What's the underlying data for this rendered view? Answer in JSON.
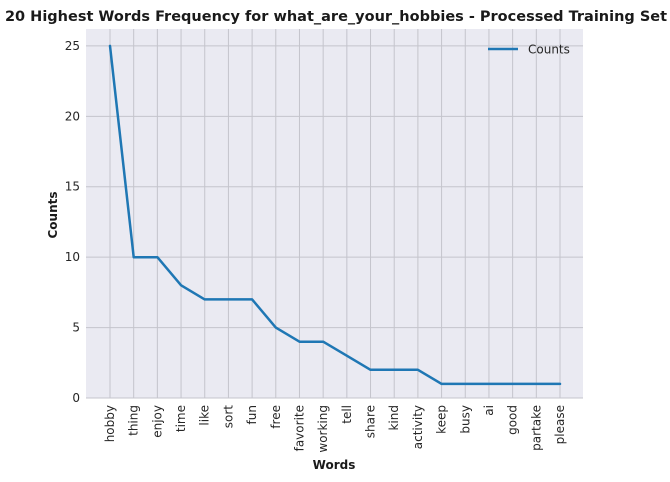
{
  "chart_data": {
    "type": "line",
    "title": "20 Highest Words Frequency for what_are_your_hobbies - Processed Training Set",
    "xlabel": "Words",
    "ylabel": "Counts",
    "categories": [
      "hobby",
      "thing",
      "enjoy",
      "time",
      "like",
      "sort",
      "fun",
      "free",
      "favorite",
      "working",
      "tell",
      "share",
      "kind",
      "activity",
      "keep",
      "busy",
      "ai",
      "good",
      "partake",
      "please"
    ],
    "series": [
      {
        "name": "Counts",
        "values": [
          25,
          10,
          10,
          8,
          7,
          7,
          7,
          5,
          4,
          4,
          3,
          2,
          2,
          2,
          1,
          1,
          1,
          1,
          1,
          1
        ]
      }
    ],
    "ylim": [
      0,
      26.2
    ],
    "yticks": [
      0,
      5,
      10,
      15,
      20,
      25
    ],
    "grid": true,
    "legend": "top-right",
    "colors": {
      "line": "#1f77b4",
      "plot_bg": "#eaeaf2",
      "grid": "#c4c4cc"
    }
  }
}
